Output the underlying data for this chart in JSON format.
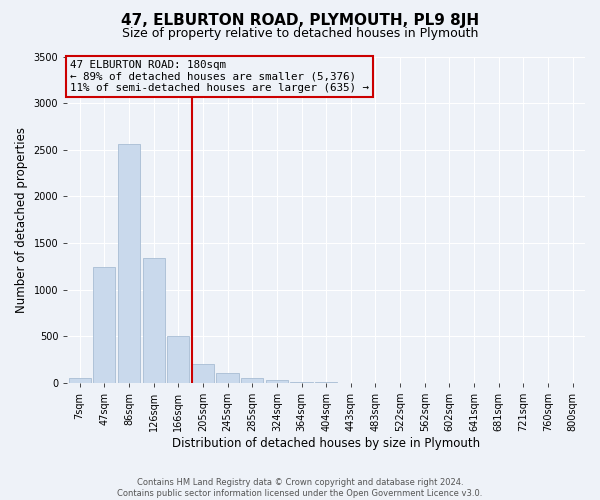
{
  "title": "47, ELBURTON ROAD, PLYMOUTH, PL9 8JH",
  "subtitle": "Size of property relative to detached houses in Plymouth",
  "xlabel": "Distribution of detached houses by size in Plymouth",
  "ylabel": "Number of detached properties",
  "bar_labels": [
    "7sqm",
    "47sqm",
    "86sqm",
    "126sqm",
    "166sqm",
    "205sqm",
    "245sqm",
    "285sqm",
    "324sqm",
    "364sqm",
    "404sqm",
    "443sqm",
    "483sqm",
    "522sqm",
    "562sqm",
    "602sqm",
    "641sqm",
    "681sqm",
    "721sqm",
    "760sqm",
    "800sqm"
  ],
  "bar_values": [
    50,
    1240,
    2560,
    1335,
    500,
    200,
    110,
    50,
    30,
    10,
    5,
    2,
    1,
    0,
    0,
    0,
    0,
    0,
    0,
    0,
    0
  ],
  "bar_color": "#c9d9ec",
  "bar_edge_color": "#a8bdd4",
  "vline_x": 4.55,
  "vline_color": "#cc0000",
  "annotation_line1": "47 ELBURTON ROAD: 180sqm",
  "annotation_line2": "← 89% of detached houses are smaller (5,376)",
  "annotation_line3": "11% of semi-detached houses are larger (635) →",
  "annotation_box_color": "#cc0000",
  "ylim": [
    0,
    3500
  ],
  "yticks": [
    0,
    500,
    1000,
    1500,
    2000,
    2500,
    3000,
    3500
  ],
  "background_color": "#eef2f8",
  "grid_color": "#ffffff",
  "footer_line1": "Contains HM Land Registry data © Crown copyright and database right 2024.",
  "footer_line2": "Contains public sector information licensed under the Open Government Licence v3.0.",
  "title_fontsize": 11,
  "subtitle_fontsize": 9,
  "axis_label_fontsize": 8.5,
  "tick_fontsize": 7
}
